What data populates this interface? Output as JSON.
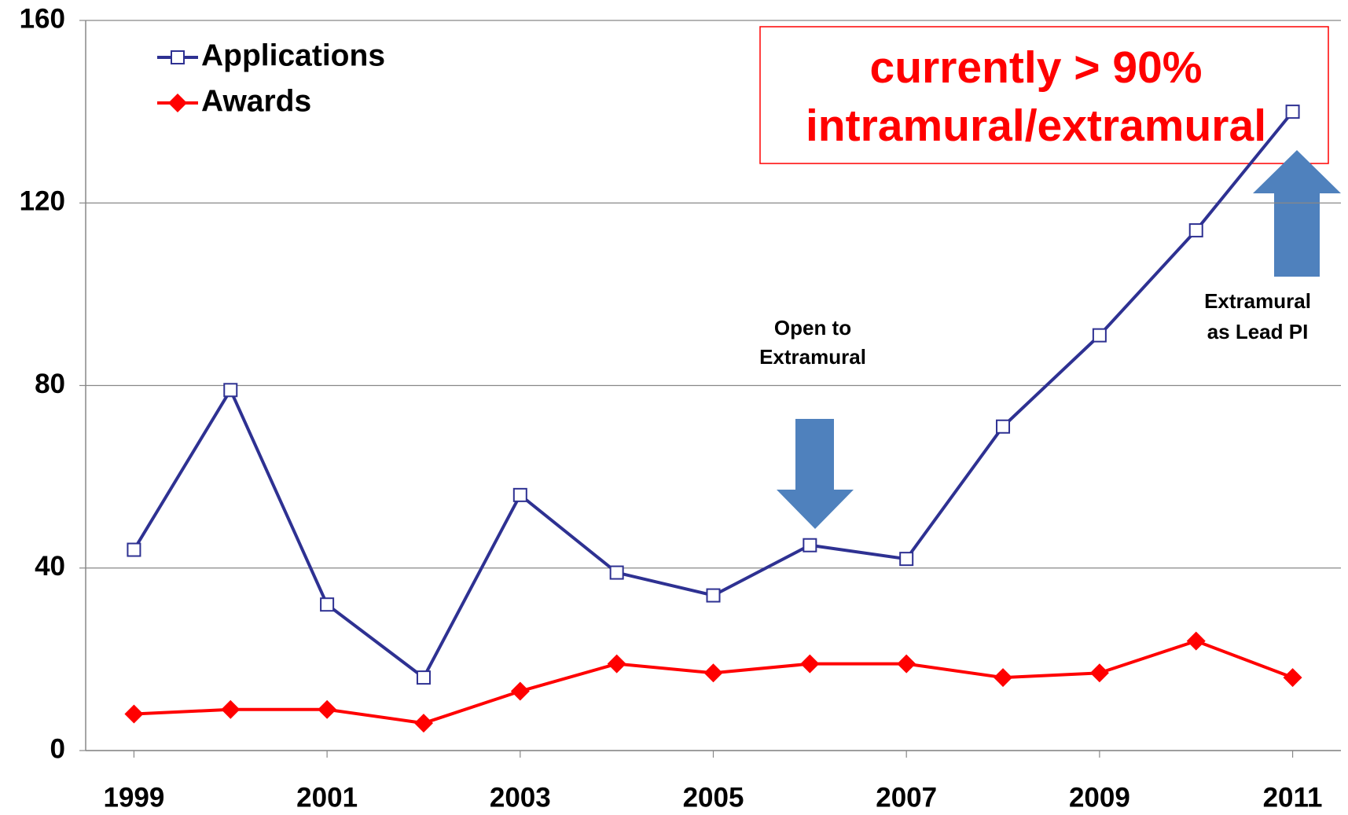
{
  "chart_data": {
    "type": "line",
    "x": [
      1999,
      2000,
      2001,
      2002,
      2003,
      2004,
      2005,
      2006,
      2007,
      2008,
      2009,
      2010,
      2011
    ],
    "xlim": [
      1998.5,
      2011.5
    ],
    "xticks": [
      1999,
      2001,
      2003,
      2005,
      2007,
      2009,
      2011
    ],
    "ylim": [
      0,
      160
    ],
    "yticks": [
      0,
      40,
      80,
      120,
      160
    ],
    "grid": true,
    "legend": "upper left",
    "series": [
      {
        "name": "Applications",
        "color": "#2E3192",
        "marker": "square",
        "values": [
          44,
          79,
          32,
          16,
          56,
          39,
          34,
          45,
          42,
          71,
          91,
          114,
          140
        ]
      },
      {
        "name": "Awards",
        "color": "#FF0000",
        "marker": "diamond",
        "values": [
          8,
          9,
          9,
          6,
          13,
          19,
          17,
          19,
          19,
          16,
          17,
          24,
          16
        ]
      }
    ],
    "annotations": [
      {
        "lines": [
          "currently > 90%",
          "intramural/extramural"
        ]
      },
      {
        "lines": [
          "Open to",
          "Extramural"
        ]
      },
      {
        "lines": [
          "Extramural",
          "as Lead PI"
        ]
      }
    ]
  }
}
